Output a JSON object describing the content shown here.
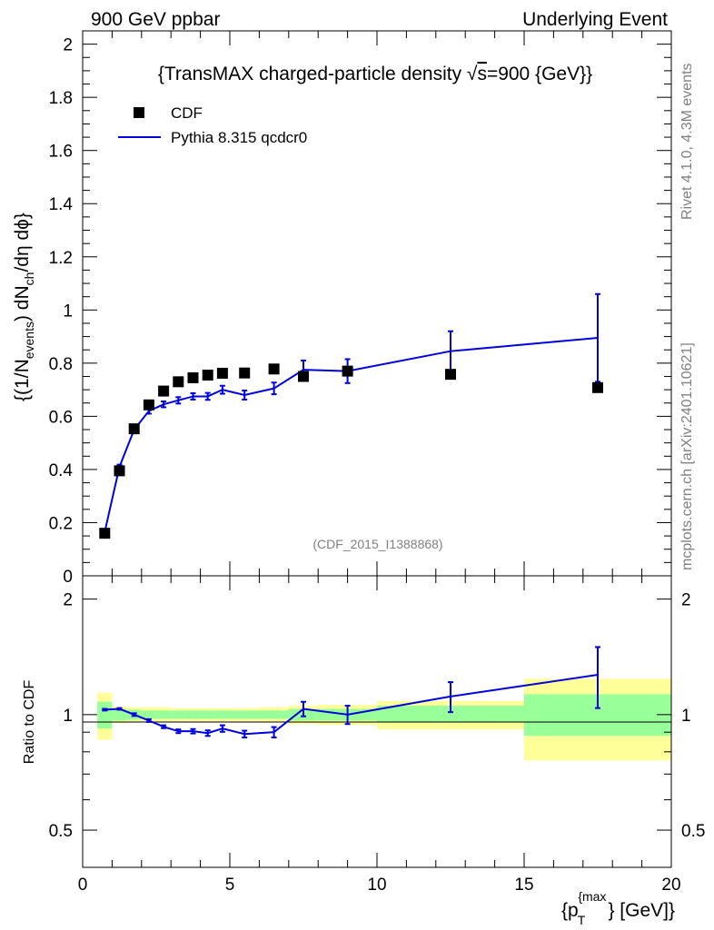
{
  "header": {
    "left": "900 GeV ppbar",
    "right": "Underlying Event"
  },
  "side_labels": {
    "rivet": "Rivet 4.1.0,  4.3M events",
    "mcplots": "mcplots.cern.ch [arXiv:2401.10621]"
  },
  "chart_data": [
    {
      "type": "scatter",
      "panel": "main",
      "title": "{TransMAX charged-particle density √s=900 {GeV}}",
      "title_parts": {
        "prefix": "{TransMAX charged-particle density ",
        "sqrt": "√",
        "var": "s",
        "suffix": "=900 {GeV}}"
      },
      "watermark": "(CDF_2015_I1388868)",
      "ylabel_parts": {
        "a": "{(1/N",
        "sub1": "events",
        "b": ") dN",
        "sub2": "ch",
        "c": "/dη  dϕ}"
      },
      "xlim": [
        0,
        20
      ],
      "ylim": [
        0,
        2.05
      ],
      "yticks": [
        "0",
        "0.2",
        "0.4",
        "0.6",
        "0.8",
        "1",
        "1.2",
        "1.4",
        "1.6",
        "1.8",
        "2"
      ],
      "legend_position": "top-left",
      "series": [
        {
          "name": "CDF",
          "style": "markers",
          "color": "#000000",
          "x": [
            0.75,
            1.25,
            1.75,
            2.25,
            2.75,
            3.25,
            3.75,
            4.25,
            4.75,
            5.5,
            6.5,
            7.5,
            9.0,
            12.5,
            17.5
          ],
          "y": [
            0.16,
            0.395,
            0.553,
            0.643,
            0.695,
            0.73,
            0.745,
            0.755,
            0.762,
            0.763,
            0.778,
            0.75,
            0.77,
            0.758,
            0.708
          ]
        },
        {
          "name": "Pythia 8.315 qcdcr0",
          "style": "line",
          "color": "#0000dd",
          "x": [
            0.75,
            1.25,
            1.75,
            2.25,
            2.75,
            3.25,
            3.75,
            4.25,
            4.75,
            5.5,
            6.5,
            7.5,
            9.0,
            12.5,
            17.5
          ],
          "y": [
            0.165,
            0.41,
            0.55,
            0.62,
            0.645,
            0.66,
            0.675,
            0.675,
            0.7,
            0.68,
            0.705,
            0.775,
            0.77,
            0.845,
            0.895
          ],
          "err": [
            0.005,
            0.008,
            0.009,
            0.01,
            0.011,
            0.012,
            0.012,
            0.013,
            0.015,
            0.017,
            0.022,
            0.035,
            0.045,
            0.075,
            0.165
          ]
        }
      ]
    },
    {
      "type": "line",
      "panel": "ratio",
      "ylabel": "Ratio to CDF",
      "xlabel_parts": {
        "a": "{p",
        "sub": "T",
        "sup": "{max",
        "b": "} [GeV]}"
      },
      "xlim": [
        0,
        20
      ],
      "ylim": [
        0.4,
        2.3
      ],
      "xticks": [
        "0",
        "5",
        "10",
        "15",
        "20"
      ],
      "yticks": [
        "0.5",
        "1",
        "2"
      ],
      "bands": {
        "x_edges": [
          0.5,
          1.0,
          1.5,
          2.0,
          2.5,
          3.0,
          3.5,
          4.0,
          4.5,
          5.0,
          6.0,
          7.0,
          8.0,
          10.0,
          15.0,
          20.0
        ],
        "stat_low": [
          0.92,
          0.965,
          0.97,
          0.975,
          0.975,
          0.975,
          0.975,
          0.975,
          0.975,
          0.975,
          0.975,
          0.965,
          0.965,
          0.955,
          0.88
        ],
        "stat_high": [
          1.08,
          1.035,
          1.03,
          1.025,
          1.025,
          1.025,
          1.025,
          1.025,
          1.025,
          1.025,
          1.025,
          1.035,
          1.035,
          1.055,
          1.13
        ],
        "total_low": [
          0.86,
          0.95,
          0.955,
          0.955,
          0.955,
          0.96,
          0.96,
          0.96,
          0.96,
          0.96,
          0.955,
          0.945,
          0.94,
          0.915,
          0.76
        ],
        "total_high": [
          1.14,
          1.05,
          1.045,
          1.045,
          1.045,
          1.04,
          1.04,
          1.04,
          1.04,
          1.04,
          1.045,
          1.055,
          1.06,
          1.085,
          1.24
        ]
      },
      "series": [
        {
          "name": "Pythia 8.315 qcdcr0 / CDF",
          "color": "#0000dd",
          "x": [
            0.75,
            1.25,
            1.75,
            2.25,
            2.75,
            3.25,
            3.75,
            4.25,
            4.75,
            5.5,
            6.5,
            7.5,
            9.0,
            12.5,
            17.5
          ],
          "y": [
            1.03,
            1.035,
            1.0,
            0.965,
            0.93,
            0.905,
            0.905,
            0.895,
            0.92,
            0.89,
            0.9,
            1.035,
            1.0,
            1.115,
            1.27
          ],
          "err": [
            0.005,
            0.005,
            0.008,
            0.008,
            0.008,
            0.01,
            0.012,
            0.015,
            0.018,
            0.018,
            0.028,
            0.045,
            0.055,
            0.1,
            0.23
          ]
        }
      ]
    }
  ]
}
